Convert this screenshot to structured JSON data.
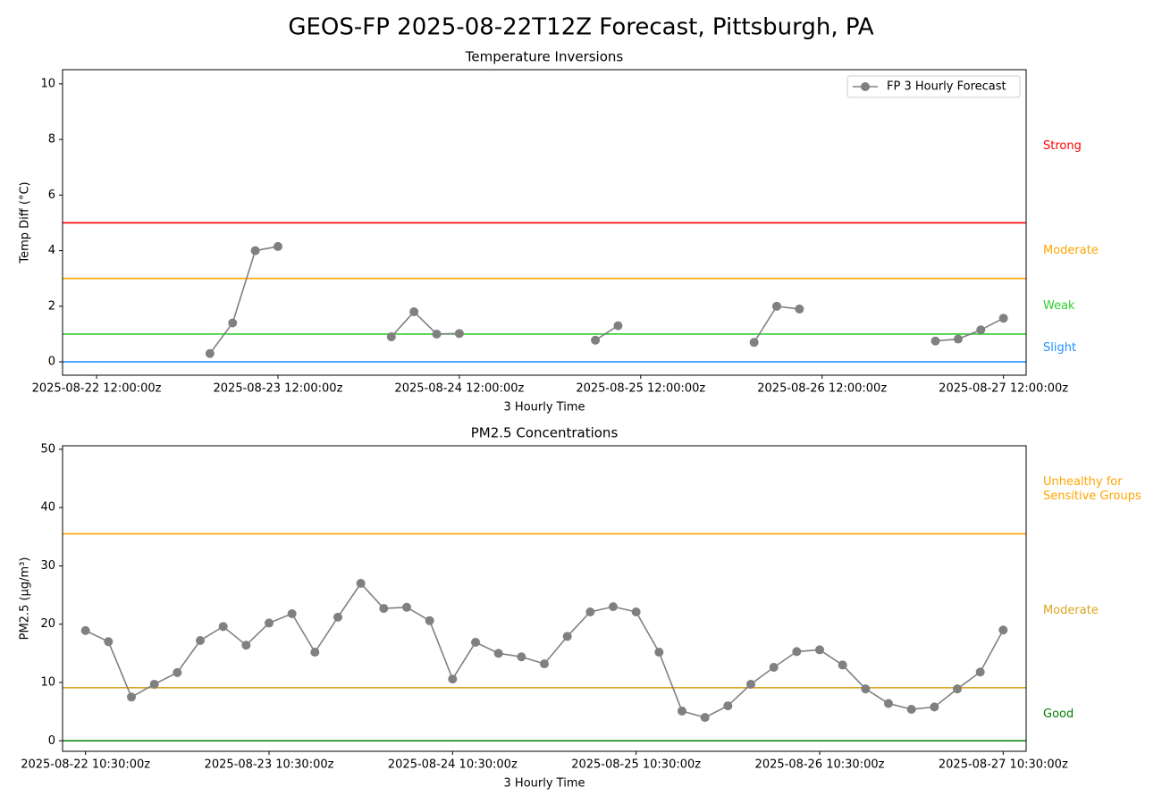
{
  "title": "GEOS-FP 2025-08-22T12Z Forecast, Pittsburgh, PA",
  "chart_data": [
    {
      "type": "line",
      "title": "Temperature Inversions",
      "xlabel": "3 Hourly Time",
      "ylabel": "Temp Diff (°C)",
      "x": [
        "2025-08-23 03:00:00z",
        "2025-08-23 06:00:00z",
        "2025-08-23 09:00:00z",
        "2025-08-23 12:00:00z",
        "2025-08-23 15:00:00z",
        "2025-08-24 03:00:00z",
        "2025-08-24 06:00:00z",
        "2025-08-24 09:00:00z",
        "2025-08-24 12:00:00z",
        "2025-08-24 15:00:00z",
        "2025-08-25 06:00:00z",
        "2025-08-25 09:00:00z",
        "2025-08-25 12:00:00z",
        "2025-08-26 03:00:00z",
        "2025-08-26 06:00:00z",
        "2025-08-26 09:00:00z",
        "2025-08-26 12:00:00z",
        "2025-08-27 03:00:00z",
        "2025-08-27 06:00:00z",
        "2025-08-27 09:00:00z",
        "2025-08-27 12:00:00z"
      ],
      "series": [
        {
          "name": "FP 3 Hourly Forecast",
          "color": "#808080",
          "values": [
            0.3,
            1.4,
            4.0,
            4.15,
            null,
            0.9,
            1.8,
            1.0,
            1.02,
            null,
            0.78,
            1.3,
            null,
            0.7,
            2.0,
            1.9,
            null,
            0.75,
            0.82,
            1.15,
            1.57
          ]
        }
      ],
      "xlim": [
        "2025-08-22 07:30:00z",
        "2025-08-27 15:00:00z"
      ],
      "xticks": [
        "2025-08-22 12:00:00z",
        "2025-08-23 12:00:00z",
        "2025-08-24 12:00:00z",
        "2025-08-25 12:00:00z",
        "2025-08-26 12:00:00z",
        "2025-08-27 12:00:00z"
      ],
      "ylim": [
        -0.48,
        10.51
      ],
      "yticks": [
        0,
        2,
        4,
        6,
        8,
        10
      ],
      "legend": "upper right",
      "levels": [
        {
          "label": "Slight",
          "value": 0,
          "color": "#1e90ff"
        },
        {
          "label": "Weak",
          "value": 1,
          "color": "#32cd32"
        },
        {
          "label": "Moderate",
          "value": 3,
          "color": "#ffa500"
        },
        {
          "label": "Strong",
          "value": 5,
          "color": "#ff0000"
        }
      ]
    },
    {
      "type": "line",
      "title": "PM2.5 Concentrations",
      "xlabel": "3 Hourly Time",
      "ylabel": "PM2.5 (µg/m³)",
      "x": [
        "2025-08-22 10:30:00z",
        "2025-08-22 13:30:00z",
        "2025-08-22 16:30:00z",
        "2025-08-22 19:30:00z",
        "2025-08-22 22:30:00z",
        "2025-08-23 01:30:00z",
        "2025-08-23 04:30:00z",
        "2025-08-23 07:30:00z",
        "2025-08-23 10:30:00z",
        "2025-08-23 13:30:00z",
        "2025-08-23 16:30:00z",
        "2025-08-23 19:30:00z",
        "2025-08-23 22:30:00z",
        "2025-08-24 01:30:00z",
        "2025-08-24 04:30:00z",
        "2025-08-24 07:30:00z",
        "2025-08-24 10:30:00z",
        "2025-08-24 13:30:00z",
        "2025-08-24 16:30:00z",
        "2025-08-24 19:30:00z",
        "2025-08-24 22:30:00z",
        "2025-08-25 01:30:00z",
        "2025-08-25 04:30:00z",
        "2025-08-25 07:30:00z",
        "2025-08-25 10:30:00z",
        "2025-08-25 13:30:00z",
        "2025-08-25 16:30:00z",
        "2025-08-25 19:30:00z",
        "2025-08-25 22:30:00z",
        "2025-08-26 01:30:00z",
        "2025-08-26 04:30:00z",
        "2025-08-26 07:30:00z",
        "2025-08-26 10:30:00z",
        "2025-08-26 13:30:00z",
        "2025-08-26 16:30:00z",
        "2025-08-26 19:30:00z",
        "2025-08-26 22:30:00z",
        "2025-08-27 01:30:00z",
        "2025-08-27 04:30:00z",
        "2025-08-27 07:30:00z",
        "2025-08-27 10:30:00z"
      ],
      "series": [
        {
          "color": "#808080",
          "values": [
            18.9,
            17.0,
            7.5,
            9.7,
            11.7,
            17.2,
            19.6,
            16.4,
            20.2,
            21.8,
            15.2,
            21.2,
            27.0,
            22.7,
            22.9,
            20.6,
            10.6,
            16.9,
            15.0,
            14.4,
            13.2,
            17.9,
            22.1,
            23.0,
            22.1,
            15.2,
            5.1,
            4.0,
            6.0,
            9.7,
            12.6,
            15.3,
            15.6,
            13.0,
            8.9,
            6.4,
            5.4,
            5.8,
            8.9,
            11.8,
            19.0
          ]
        }
      ],
      "xlim": [
        "2025-08-22 07:30:00z",
        "2025-08-27 13:30:00z"
      ],
      "xticks": [
        "2025-08-22 10:30:00z",
        "2025-08-23 10:30:00z",
        "2025-08-24 10:30:00z",
        "2025-08-25 10:30:00z",
        "2025-08-26 10:30:00z",
        "2025-08-27 10:30:00z"
      ],
      "ylim": [
        -1.8,
        50.6
      ],
      "yticks": [
        0,
        10,
        20,
        30,
        40,
        50
      ],
      "levels": [
        {
          "label": "Good",
          "value": 0,
          "color": "#008000"
        },
        {
          "label": "Moderate",
          "value": 9.1,
          "color": "#daa520"
        },
        {
          "label": "Unhealthy for\nSensitive Groups",
          "value": 35.5,
          "color": "#ffa500"
        }
      ]
    }
  ]
}
